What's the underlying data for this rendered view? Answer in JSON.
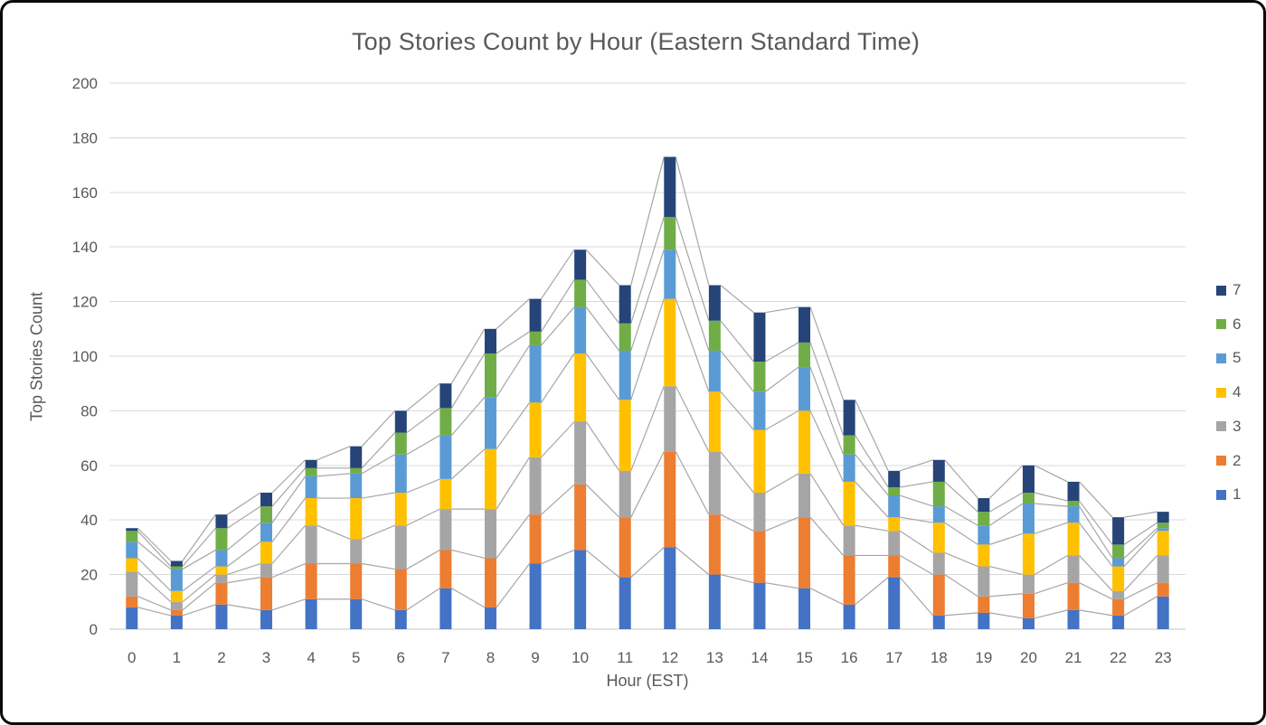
{
  "chart_data": {
    "type": "bar",
    "subtype": "stacked-column-with-series-lines",
    "title": "Top Stories Count by Hour (Eastern Standard Time)",
    "xlabel": "Hour (EST)",
    "ylabel": "Top Stories Count",
    "ylim": [
      0,
      200
    ],
    "y_tick_step": 20,
    "y_tick_labels": [
      "0",
      "20",
      "40",
      "60",
      "80",
      "100",
      "120",
      "140",
      "160",
      "180",
      "200"
    ],
    "grid": true,
    "legend_position": "right",
    "legend_order_top_to_bottom": [
      "7",
      "6",
      "5",
      "4",
      "3",
      "2",
      "1"
    ],
    "categories": [
      "0",
      "1",
      "2",
      "3",
      "4",
      "5",
      "6",
      "7",
      "8",
      "9",
      "10",
      "11",
      "12",
      "13",
      "14",
      "15",
      "16",
      "17",
      "18",
      "19",
      "20",
      "21",
      "22",
      "23"
    ],
    "series": [
      {
        "name": "1",
        "color": "#4472C4",
        "values": [
          8,
          5,
          9,
          7,
          11,
          11,
          7,
          15,
          8,
          24,
          29,
          19,
          30,
          20,
          17,
          15,
          9,
          19,
          5,
          6,
          4,
          7,
          5,
          12
        ]
      },
      {
        "name": "2",
        "color": "#ED7D31",
        "values": [
          4,
          2,
          8,
          12,
          13,
          13,
          15,
          14,
          18,
          18,
          24,
          22,
          35,
          22,
          19,
          26,
          18,
          8,
          15,
          6,
          9,
          10,
          6,
          5
        ]
      },
      {
        "name": "3",
        "color": "#A5A5A5",
        "values": [
          9,
          3,
          3,
          5,
          14,
          9,
          16,
          15,
          18,
          21,
          23,
          17,
          24,
          23,
          14,
          16,
          11,
          9,
          8,
          11,
          7,
          10,
          3,
          10
        ]
      },
      {
        "name": "4",
        "color": "#FFC000",
        "values": [
          5,
          4,
          3,
          8,
          10,
          15,
          12,
          11,
          22,
          20,
          25,
          26,
          32,
          22,
          23,
          23,
          16,
          5,
          11,
          8,
          15,
          12,
          9,
          9
        ]
      },
      {
        "name": "5",
        "color": "#5B9BD5",
        "values": [
          6,
          8,
          6,
          7,
          8,
          9,
          14,
          16,
          19,
          21,
          17,
          18,
          18,
          15,
          14,
          16,
          10,
          8,
          6,
          7,
          11,
          6,
          3,
          1
        ]
      },
      {
        "name": "6",
        "color": "#70AD47",
        "values": [
          4,
          1,
          8,
          6,
          3,
          2,
          8,
          10,
          16,
          5,
          10,
          10,
          12,
          11,
          11,
          9,
          7,
          3,
          9,
          5,
          4,
          2,
          5,
          2
        ]
      },
      {
        "name": "7",
        "color": "#264478",
        "values": [
          1,
          2,
          5,
          5,
          3,
          8,
          8,
          9,
          9,
          12,
          11,
          14,
          22,
          13,
          18,
          13,
          13,
          6,
          8,
          5,
          10,
          7,
          10,
          4
        ]
      }
    ],
    "stack_totals": [
      37,
      25,
      42,
      50,
      62,
      67,
      80,
      90,
      110,
      121,
      139,
      126,
      173,
      126,
      116,
      118,
      84,
      58,
      62,
      48,
      60,
      54,
      41,
      43
    ],
    "gridline_color": "#D9D9D9",
    "axis_line_color": "#C6C6C6",
    "series_line_color": "#A6A6A6",
    "text_color": "#595959"
  }
}
